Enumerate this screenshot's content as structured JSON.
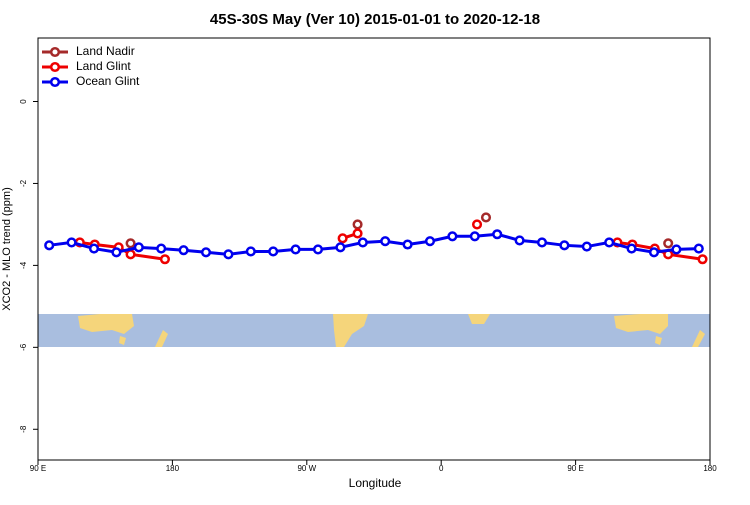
{
  "chart_data": {
    "type": "line",
    "title": "45S-30S May (Ver 10)   2015-01-01 to 2020-12-18",
    "x_label": "Longitude",
    "y_label": "XCO2 - MLO trend (ppm)",
    "xlim": [
      90,
      540
    ],
    "xticks": [
      {
        "value": 90,
        "label": "90 E"
      },
      {
        "value": 180,
        "label": "180"
      },
      {
        "value": 270,
        "label": "90 W"
      },
      {
        "value": 360,
        "label": "0"
      },
      {
        "value": 450,
        "label": "90 E"
      },
      {
        "value": 540,
        "label": "180"
      }
    ],
    "ylim": [
      -8.75,
      1.55
    ],
    "yticks": [
      0,
      -2,
      -4,
      -6,
      -8
    ],
    "legend": "top-left",
    "series": [
      {
        "name": "Land Nadir",
        "color": "#a52a2a",
        "x": [
          152,
          null,
          304,
          null,
          390,
          null,
          512
        ],
        "values": [
          -3.46,
          null,
          -3.0,
          null,
          -2.83,
          null,
          -3.46
        ]
      },
      {
        "name": "Land Glint",
        "color": "#ee0000",
        "x": [
          118,
          128,
          144,
          152,
          175,
          null,
          294,
          304,
          null,
          384,
          null,
          478,
          488,
          503,
          512,
          535
        ],
        "values": [
          -3.44,
          -3.49,
          -3.56,
          -3.73,
          -3.85,
          null,
          -3.34,
          -3.22,
          null,
          -3.0,
          null,
          -3.44,
          -3.49,
          -3.59,
          -3.73,
          -3.85
        ]
      },
      {
        "name": "Ocean Glint",
        "color": "#0000ee",
        "x": [
          97.5,
          112.5,
          127.5,
          142.5,
          157.5,
          172.5,
          187.5,
          202.5,
          217.5,
          232.5,
          247.5,
          262.5,
          277.5,
          292.5,
          307.5,
          322.5,
          337.5,
          352.5,
          367.5,
          382.5,
          397.5,
          412.5,
          427.5,
          442.5,
          457.5,
          472.5,
          487.5,
          502.5,
          517.5,
          532.5
        ],
        "values": [
          -3.51,
          -3.44,
          -3.59,
          -3.68,
          -3.56,
          -3.59,
          -3.63,
          -3.68,
          -3.73,
          -3.66,
          -3.66,
          -3.61,
          -3.61,
          -3.56,
          -3.44,
          -3.41,
          -3.49,
          -3.41,
          -3.29,
          -3.29,
          -3.24,
          -3.39,
          -3.44,
          -3.51,
          -3.54,
          -3.44,
          -3.59,
          -3.68,
          -3.61,
          -3.59
        ]
      }
    ]
  }
}
